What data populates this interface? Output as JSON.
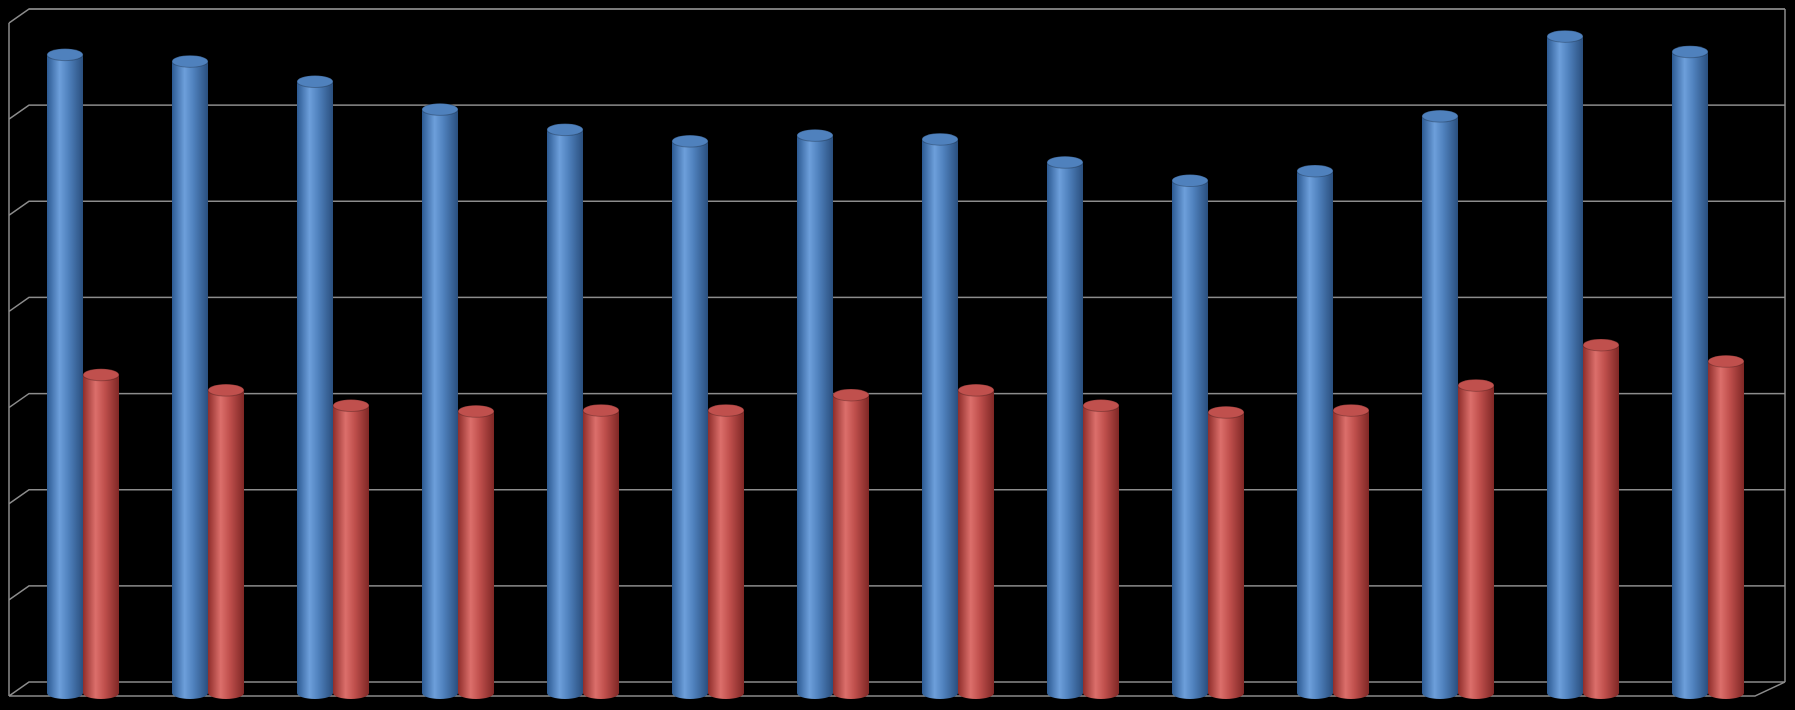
{
  "chart_data": {
    "type": "bar",
    "categories": [
      null,
      null,
      null,
      null,
      null,
      null,
      null,
      null,
      null,
      null,
      null,
      null,
      null,
      null
    ],
    "series": [
      {
        "color": "#4f81bd",
        "values": [
          6.64,
          6.57,
          6.36,
          6.07,
          5.86,
          5.74,
          5.8,
          5.76,
          5.52,
          5.33,
          5.43,
          6.0,
          6.83,
          6.67
        ]
      },
      {
        "color": "#c0504d",
        "values": [
          3.31,
          3.15,
          2.99,
          2.93,
          2.94,
          2.94,
          3.1,
          3.15,
          2.99,
          2.92,
          2.94,
          3.2,
          3.62,
          3.45
        ]
      }
    ],
    "ylim": [
      0,
      7
    ],
    "yticks": [
      0,
      1,
      2,
      3,
      4,
      5,
      6,
      7
    ],
    "grid": true
  }
}
